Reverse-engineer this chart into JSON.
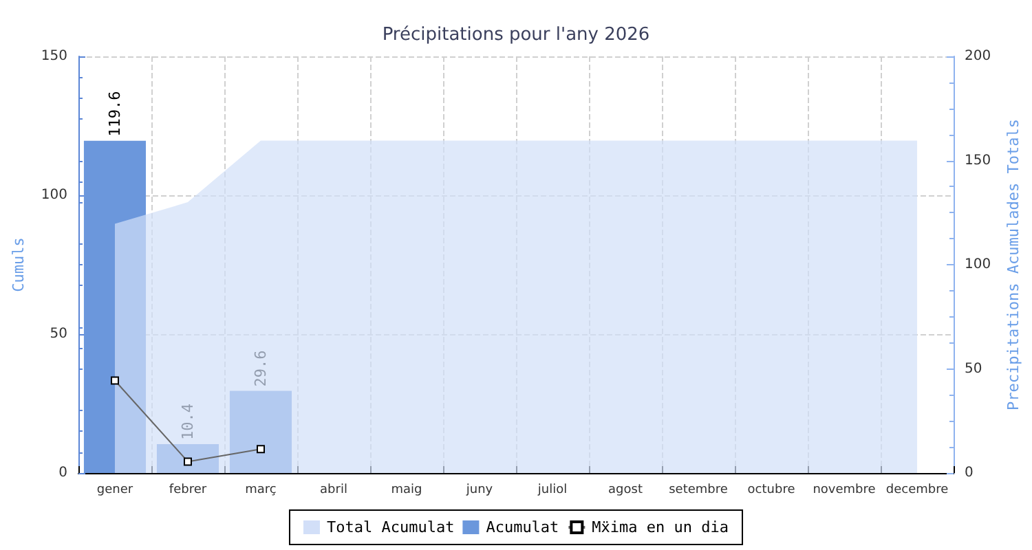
{
  "chart_data": {
    "type": "bar",
    "title": "Précipitations pour l'any 2026",
    "ylabel": "Cumuls",
    "y2label": "Precipitations Acumulades Totals",
    "categories": [
      "gener",
      "febrer",
      "març",
      "abril",
      "maig",
      "juny",
      "juliol",
      "agost",
      "setembre",
      "octubre",
      "novembre",
      "decembre"
    ],
    "series": [
      {
        "name": "Total Acumulat",
        "type": "area",
        "axis": "y2",
        "color": "#d2dff8",
        "values": [
          119.6,
          130,
          159.6,
          159.6,
          159.6,
          159.6,
          159.6,
          159.6,
          159.6,
          159.6,
          159.6,
          159.6
        ]
      },
      {
        "name": "Acumulat",
        "color": "#6b97dc",
        "values": [
          119.6,
          10.4,
          29.6,
          null,
          null,
          null,
          null,
          null,
          null,
          null,
          null,
          null
        ],
        "value_labels": [
          "119.6",
          "10.4",
          "29.6",
          null,
          null,
          null,
          null,
          null,
          null,
          null,
          null,
          null
        ]
      },
      {
        "name": "Mẍima en un dia",
        "type": "line",
        "color": "#666666",
        "marker": "square",
        "values": [
          33.3,
          4.1,
          8.6,
          null,
          null,
          null,
          null,
          null,
          null,
          null,
          null,
          null
        ]
      }
    ],
    "ylim": [
      0,
      150
    ],
    "yticks": [
      0,
      50,
      100,
      150
    ],
    "y2lim": [
      0,
      200
    ],
    "y2ticks": [
      0,
      50,
      100,
      150,
      200
    ],
    "grid": true,
    "legend": "bottom"
  }
}
